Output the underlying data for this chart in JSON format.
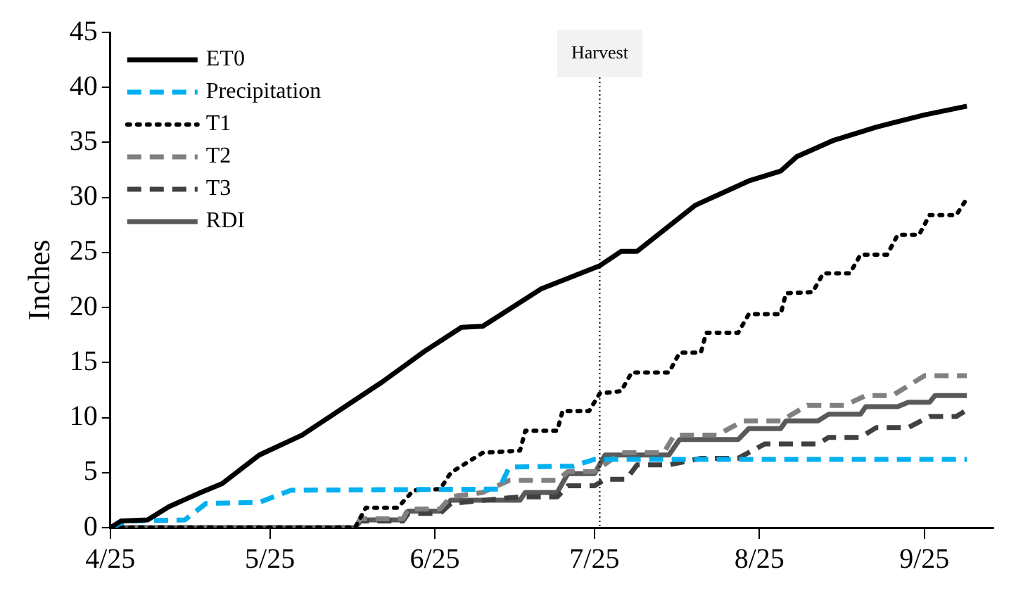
{
  "chart_data": {
    "type": "line",
    "ylabel": "Inches",
    "xlim": [
      "--04-25",
      "--10-08"
    ],
    "ylim": [
      0,
      45
    ],
    "xticks": [
      {
        "value": "--04-25",
        "label": "4/25"
      },
      {
        "value": "--05-25",
        "label": "5/25"
      },
      {
        "value": "--06-25",
        "label": "6/25"
      },
      {
        "value": "--07-25",
        "label": "7/25"
      },
      {
        "value": "--08-25",
        "label": "8/25"
      },
      {
        "value": "--09-25",
        "label": "9/25"
      }
    ],
    "yticks": [
      0,
      5,
      10,
      15,
      20,
      25,
      30,
      35,
      40,
      45
    ],
    "grid": false,
    "legend": "top left",
    "ref_lines": [
      {
        "axis": "x",
        "value": "--07-26",
        "label": "Harvest",
        "color": "#000000",
        "line_style": "dotted"
      }
    ],
    "series": [
      {
        "name": "ET0",
        "color": "#000000",
        "line_style": "solid",
        "x": [
          "--04-25",
          "--04-27",
          "--05-02",
          "--05-06",
          "--05-12",
          "--05-16",
          "--05-23",
          "--05-31",
          "--06-05",
          "--06-10",
          "--06-15",
          "--06-23",
          "--06-30",
          "--07-04",
          "--07-15",
          "--07-26",
          "--07-30",
          "--08-02",
          "--08-13",
          "--08-23",
          "--08-29",
          "--09-01",
          "--09-08",
          "--09-16",
          "--09-25",
          "--10-03"
        ],
        "values": [
          0,
          0.6,
          0.7,
          1.9,
          3.2,
          4.0,
          6.6,
          8.4,
          10.0,
          11.6,
          13.2,
          16.0,
          18.2,
          18.3,
          21.7,
          23.8,
          25.1,
          25.1,
          29.3,
          31.5,
          32.4,
          33.7,
          35.2,
          36.4,
          37.5,
          38.3
        ]
      },
      {
        "name": "Precipitation",
        "color": "#00b0f0",
        "line_style": "dashed",
        "x": [
          "--04-25",
          "--04-28",
          "--05-09",
          "--05-13",
          "--05-23",
          "--05-29",
          "--07-07",
          "--07-09",
          "--07-21",
          "--07-25",
          "--10-03"
        ],
        "values": [
          0,
          0.6,
          0.7,
          2.2,
          2.3,
          3.4,
          3.5,
          5.5,
          5.6,
          6.2,
          6.2
        ]
      },
      {
        "name": "T1",
        "color": "#000000",
        "line_style": "dotted",
        "x": [
          "--04-25",
          "--06-10",
          "--06-11",
          "--06-12",
          "--06-18",
          "--06-21",
          "--06-26",
          "--06-28",
          "--07-04",
          "--07-11",
          "--07-12",
          "--07-18",
          "--07-19",
          "--07-24",
          "--07-26",
          "--07-30",
          "--08-01",
          "--08-08",
          "--08-10",
          "--08-14",
          "--08-15",
          "--08-21",
          "--08-23",
          "--08-29",
          "--08-30",
          "--09-04",
          "--09-06",
          "--09-11",
          "--09-13",
          "--09-18",
          "--09-20",
          "--09-24",
          "--09-26",
          "--10-01",
          "--10-03"
        ],
        "values": [
          0,
          0,
          0.9,
          1.8,
          1.8,
          3.4,
          3.5,
          5.0,
          6.8,
          7.0,
          8.8,
          8.8,
          10.6,
          10.6,
          12.2,
          12.4,
          14.1,
          14.1,
          15.9,
          15.9,
          17.7,
          17.7,
          19.4,
          19.4,
          21.3,
          21.4,
          23.1,
          23.1,
          24.8,
          24.8,
          26.6,
          26.6,
          28.4,
          28.4,
          29.9
        ]
      },
      {
        "name": "T2",
        "color": "#808080",
        "line_style": "dashed",
        "x": [
          "--04-25",
          "--06-10",
          "--06-11",
          "--06-19",
          "--06-20",
          "--06-26",
          "--06-28",
          "--07-04",
          "--07-09",
          "--07-18",
          "--07-20",
          "--07-25",
          "--07-30",
          "--08-07",
          "--08-09",
          "--08-17",
          "--08-22",
          "--08-29",
          "--09-03",
          "--09-10",
          "--09-14",
          "--09-19",
          "--09-25",
          "--10-03"
        ],
        "values": [
          0,
          0,
          0.8,
          0.8,
          1.7,
          1.7,
          2.8,
          3.2,
          4.3,
          4.3,
          5.1,
          5.1,
          6.8,
          6.8,
          8.4,
          8.4,
          9.7,
          9.7,
          11.1,
          11.1,
          12.0,
          12.0,
          13.8,
          13.8
        ]
      },
      {
        "name": "T3",
        "color": "#404040",
        "line_style": "dashed",
        "x": [
          "--04-25",
          "--06-10",
          "--06-11",
          "--06-19",
          "--06-20",
          "--06-26",
          "--06-28",
          "--07-11",
          "--07-18",
          "--07-20",
          "--07-25",
          "--07-27",
          "--07-31",
          "--08-02",
          "--08-08",
          "--08-14",
          "--08-21",
          "--08-26",
          "--09-05",
          "--09-07",
          "--09-13",
          "--09-16",
          "--09-22",
          "--09-26",
          "--10-01",
          "--10-03"
        ],
        "values": [
          0,
          0,
          0.6,
          0.6,
          1.3,
          1.3,
          2.2,
          2.8,
          2.8,
          3.8,
          3.8,
          4.4,
          4.4,
          5.7,
          5.7,
          6.3,
          6.3,
          7.6,
          7.6,
          8.2,
          8.2,
          9.1,
          9.1,
          10.1,
          10.1,
          10.7
        ]
      },
      {
        "name": "RDI",
        "color": "#595959",
        "line_style": "solid",
        "x": [
          "--04-25",
          "--06-10",
          "--06-11",
          "--06-19",
          "--06-20",
          "--06-26",
          "--06-28",
          "--07-11",
          "--07-12",
          "--07-18",
          "--07-20",
          "--07-25",
          "--07-27",
          "--08-08",
          "--08-10",
          "--08-21",
          "--08-23",
          "--08-29",
          "--08-30",
          "--09-05",
          "--09-07",
          "--09-13",
          "--09-14",
          "--09-20",
          "--09-22",
          "--09-26",
          "--09-27",
          "--10-03"
        ],
        "values": [
          0,
          0,
          0.7,
          0.7,
          1.5,
          1.5,
          2.5,
          2.5,
          3.2,
          3.2,
          4.9,
          4.9,
          6.6,
          6.6,
          8.0,
          8.0,
          9.0,
          9.0,
          9.7,
          9.7,
          10.3,
          10.3,
          11.0,
          11.0,
          11.4,
          11.4,
          12.0,
          12.0
        ]
      }
    ]
  }
}
